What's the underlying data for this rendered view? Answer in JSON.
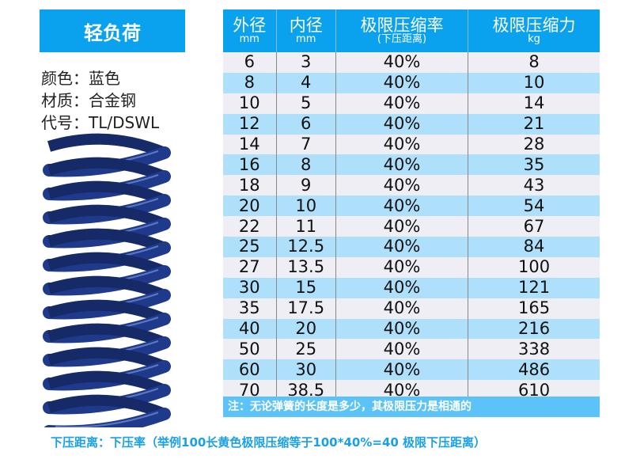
{
  "title": "轻负荷",
  "specs": [
    "颜色：蓝色",
    "材质：合金钢",
    "代号：TL/DSWL"
  ],
  "colors": {
    "header": "#0aa2ee",
    "row_alt": "#aee0fb",
    "row": "#eeeef4",
    "spring": "#1f3a8a"
  },
  "table": {
    "headers": [
      {
        "main": "外径",
        "sub": "mm"
      },
      {
        "main": "内径",
        "sub": "mm"
      },
      {
        "main": "极限压缩率",
        "sub": "(下压距离)"
      },
      {
        "main": "极限压缩力",
        "sub": "kg"
      }
    ],
    "rows": [
      [
        "6",
        "3",
        "40%",
        "8"
      ],
      [
        "8",
        "4",
        "40%",
        "10"
      ],
      [
        "10",
        "5",
        "40%",
        "14"
      ],
      [
        "12",
        "6",
        "40%",
        "21"
      ],
      [
        "14",
        "7",
        "40%",
        "28"
      ],
      [
        "16",
        "8",
        "40%",
        "35"
      ],
      [
        "18",
        "9",
        "40%",
        "43"
      ],
      [
        "20",
        "10",
        "40%",
        "54"
      ],
      [
        "22",
        "11",
        "40%",
        "67"
      ],
      [
        "25",
        "12.5",
        "40%",
        "84"
      ],
      [
        "27",
        "13.5",
        "40%",
        "100"
      ],
      [
        "30",
        "15",
        "40%",
        "121"
      ],
      [
        "35",
        "17.5",
        "40%",
        "165"
      ],
      [
        "40",
        "20",
        "40%",
        "216"
      ],
      [
        "50",
        "25",
        "40%",
        "338"
      ],
      [
        "60",
        "30",
        "40%",
        "486"
      ],
      [
        "70",
        "38.5",
        "40%",
        "610"
      ]
    ]
  },
  "note": "注：无论弹簧的长度是多少，其极限压力是相通的",
  "footer": "下压距离：下压率（举例100长黄色极限压缩等于100*40%=40 极限下压距离）"
}
